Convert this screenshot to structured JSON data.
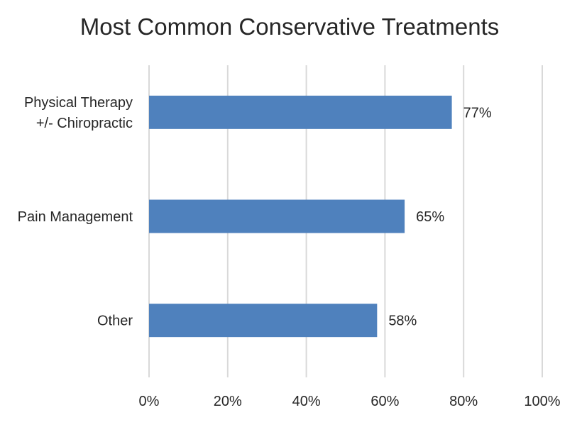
{
  "chart_data": {
    "type": "bar",
    "orientation": "horizontal",
    "title": "Most Common Conservative Treatments",
    "categories": [
      [
        "Physical Therapy",
        "+/- Chiropractic"
      ],
      [
        "Pain Management"
      ],
      [
        "Other"
      ]
    ],
    "values": [
      77,
      65,
      58
    ],
    "data_labels": [
      "77%",
      "65%",
      "58%"
    ],
    "xlim": [
      0,
      100
    ],
    "x_ticks": [
      0,
      20,
      40,
      60,
      80,
      100
    ],
    "x_tick_labels": [
      "0%",
      "20%",
      "40%",
      "60%",
      "80%",
      "100%"
    ],
    "xlabel": "",
    "ylabel": "",
    "grid": "vertical",
    "legend": "none",
    "bar_color": "#4f81bd"
  }
}
